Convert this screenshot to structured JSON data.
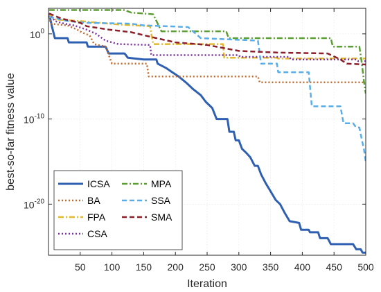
{
  "chart_data": {
    "type": "line",
    "title": "",
    "xlabel": "Iteration",
    "ylabel": "best-so-far fitness value",
    "xlim": [
      0,
      500
    ],
    "ylim_log10": [
      -26,
      3
    ],
    "yscale": "log",
    "grid": true,
    "legend_placement": "bottom-left",
    "x_ticks": [
      50,
      100,
      150,
      200,
      250,
      300,
      350,
      400,
      450,
      500
    ],
    "x_tick_labels": [
      "50",
      "100",
      "150",
      "200",
      "250",
      "300",
      "350",
      "400",
      "450",
      "500"
    ],
    "y_ticks_log10": [
      0,
      -10,
      -20
    ],
    "y_tick_labels": [
      {
        "base": "10",
        "exp": "0"
      },
      {
        "base": "10",
        "exp": "-10"
      },
      {
        "base": "10",
        "exp": "-20"
      }
    ],
    "series": [
      {
        "name": "ICSA",
        "color": "#2f5fb0",
        "dash": "solid",
        "width": 3,
        "points_log10": [
          [
            1,
            2.4
          ],
          [
            5,
            1
          ],
          [
            10,
            -0.5
          ],
          [
            30,
            -0.5
          ],
          [
            32,
            -1
          ],
          [
            60,
            -1
          ],
          [
            62,
            -1.5
          ],
          [
            90,
            -1.5
          ],
          [
            95,
            -2.3
          ],
          [
            120,
            -2.3
          ],
          [
            125,
            -2.8
          ],
          [
            150,
            -3
          ],
          [
            170,
            -3
          ],
          [
            172,
            -3.5
          ],
          [
            185,
            -4
          ],
          [
            195,
            -4.5
          ],
          [
            205,
            -5
          ],
          [
            218,
            -5.8
          ],
          [
            228,
            -6.5
          ],
          [
            240,
            -7.2
          ],
          [
            248,
            -8
          ],
          [
            258,
            -8.7
          ],
          [
            265,
            -10
          ],
          [
            282,
            -10
          ],
          [
            285,
            -11.5
          ],
          [
            292,
            -11.5
          ],
          [
            295,
            -12.5
          ],
          [
            300,
            -12.5
          ],
          [
            305,
            -13.5
          ],
          [
            312,
            -14
          ],
          [
            318,
            -14.5
          ],
          [
            325,
            -15.5
          ],
          [
            330,
            -15.5
          ],
          [
            335,
            -16.5
          ],
          [
            342,
            -17.5
          ],
          [
            350,
            -18.5
          ],
          [
            358,
            -19.5
          ],
          [
            365,
            -20
          ],
          [
            372,
            -21
          ],
          [
            380,
            -22
          ],
          [
            395,
            -22.2
          ],
          [
            398,
            -23
          ],
          [
            410,
            -23
          ],
          [
            412,
            -23.3
          ],
          [
            425,
            -23.3
          ],
          [
            428,
            -24
          ],
          [
            440,
            -24
          ],
          [
            445,
            -24.7
          ],
          [
            480,
            -24.7
          ],
          [
            485,
            -25.3
          ],
          [
            492,
            -25.3
          ],
          [
            495,
            -25.7
          ],
          [
            500,
            -25.7
          ]
        ]
      },
      {
        "name": "BA",
        "color": "#c0692a",
        "dash": "dot",
        "width": 2.5,
        "points_log10": [
          [
            1,
            2.4
          ],
          [
            3,
            1.2
          ],
          [
            30,
            1
          ],
          [
            45,
            0.5
          ],
          [
            52,
            0.2
          ],
          [
            65,
            -0.2
          ],
          [
            72,
            -1.2
          ],
          [
            90,
            -1.5
          ],
          [
            100,
            -3.5
          ],
          [
            155,
            -3.5
          ],
          [
            158,
            -5
          ],
          [
            330,
            -5
          ],
          [
            333,
            -5.7
          ],
          [
            500,
            -5.7
          ]
        ]
      },
      {
        "name": "FPA",
        "color": "#e3b82a",
        "dash": "dashdot",
        "width": 2.5,
        "points_log10": [
          [
            1,
            2.3
          ],
          [
            10,
            1.7
          ],
          [
            50,
            1.5
          ],
          [
            80,
            1.3
          ],
          [
            110,
            1.1
          ],
          [
            160,
            0.9
          ],
          [
            165,
            -1.2
          ],
          [
            275,
            -1.2
          ],
          [
            277,
            -2.8
          ],
          [
            360,
            -2.8
          ],
          [
            362,
            -2.9
          ],
          [
            500,
            -2.9
          ]
        ]
      },
      {
        "name": "CSA",
        "color": "#7b2fa3",
        "dash": "dot",
        "width": 2.5,
        "points_log10": [
          [
            1,
            2.4
          ],
          [
            10,
            1.5
          ],
          [
            25,
            1.2
          ],
          [
            40,
            1
          ],
          [
            60,
            0.5
          ],
          [
            75,
            0
          ],
          [
            90,
            -0.8
          ],
          [
            110,
            -1.2
          ],
          [
            160,
            -1.3
          ],
          [
            162,
            -2.5
          ],
          [
            300,
            -2.5
          ],
          [
            302,
            -2.7
          ],
          [
            380,
            -2.7
          ],
          [
            382,
            -3
          ],
          [
            485,
            -3
          ],
          [
            488,
            -3.2
          ],
          [
            500,
            -3.2
          ]
        ]
      },
      {
        "name": "MPA",
        "color": "#5c9e35",
        "dash": "dashdot",
        "width": 2.5,
        "points_log10": [
          [
            1,
            2.8
          ],
          [
            120,
            2.8
          ],
          [
            130,
            2.5
          ],
          [
            165,
            2.3
          ],
          [
            178,
            0.3
          ],
          [
            280,
            0.3
          ],
          [
            284,
            -0.5
          ],
          [
            445,
            -0.5
          ],
          [
            448,
            -1.5
          ],
          [
            490,
            -1.5
          ],
          [
            493,
            -3
          ],
          [
            497,
            -5.5
          ],
          [
            500,
            -7
          ]
        ]
      },
      {
        "name": "SSA",
        "color": "#5aaee8",
        "dash": "dash",
        "width": 2.5,
        "points_log10": [
          [
            1,
            2
          ],
          [
            30,
            1.5
          ],
          [
            60,
            1.3
          ],
          [
            130,
            1.2
          ],
          [
            150,
            1
          ],
          [
            220,
            0.8
          ],
          [
            240,
            -0.5
          ],
          [
            330,
            -0.8
          ],
          [
            335,
            -3.5
          ],
          [
            360,
            -3.5
          ],
          [
            362,
            -4.5
          ],
          [
            410,
            -4.5
          ],
          [
            415,
            -8.5
          ],
          [
            460,
            -8.5
          ],
          [
            465,
            -10.5
          ],
          [
            480,
            -10.5
          ],
          [
            485,
            -11
          ],
          [
            490,
            -11
          ],
          [
            494,
            -12.5
          ],
          [
            497,
            -13.5
          ],
          [
            500,
            -15
          ]
        ]
      },
      {
        "name": "SMA",
        "color": "#8b1f2a",
        "dash": "dash",
        "width": 2.5,
        "points_log10": [
          [
            1,
            2.4
          ],
          [
            20,
            1.8
          ],
          [
            50,
            1.3
          ],
          [
            60,
            0.9
          ],
          [
            95,
            0.5
          ],
          [
            130,
            0.2
          ],
          [
            170,
            -0.5
          ],
          [
            200,
            -1
          ],
          [
            250,
            -1.3
          ],
          [
            300,
            -2
          ],
          [
            360,
            -2.2
          ],
          [
            440,
            -2.3
          ],
          [
            460,
            -3
          ],
          [
            470,
            -3.5
          ],
          [
            500,
            -3.6
          ]
        ]
      }
    ]
  }
}
